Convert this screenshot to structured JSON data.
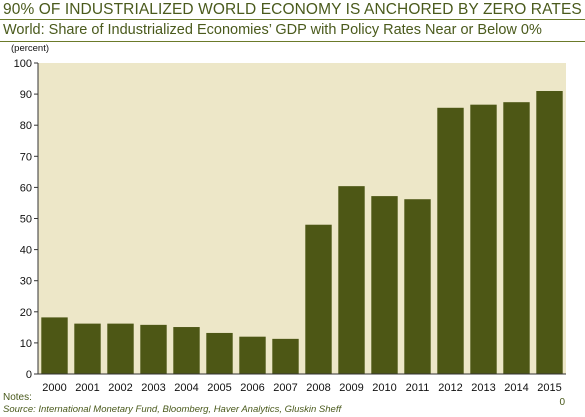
{
  "header": {
    "headline": "90% OF INDUSTRIALIZED WORLD ECONOMY IS ANCHORED BY ZERO RATES",
    "subtitle": "World: Share of Industrialized Economies’ GDP with Policy Rates Near or Below 0%"
  },
  "footer": {
    "notes_label": "Notes:",
    "source": "Source: International Monetary Fund, Bloomberg, Haver Analytics, Gluskin Sheff",
    "page_number": "0"
  },
  "colors": {
    "bar": "#4d5715",
    "plot_background": "#ede7c8",
    "text_accent": "#4a5a1c"
  },
  "chart_data": {
    "type": "bar",
    "title": "World: Share of Industrialized Economies’ GDP with Policy Rates Near or Below 0%",
    "unit": "(percent)",
    "categories": [
      "2000",
      "2001",
      "2002",
      "2003",
      "2004",
      "2005",
      "2006",
      "2007",
      "2008",
      "2009",
      "2010",
      "2011",
      "2012",
      "2013",
      "2014",
      "2015"
    ],
    "values": [
      18.2,
      16.2,
      16.2,
      15.8,
      15.1,
      13.2,
      12.0,
      11.3,
      48.0,
      60.4,
      57.2,
      56.2,
      85.6,
      86.6,
      87.4,
      91.0
    ],
    "ylim": [
      0,
      100
    ],
    "yticks": [
      0,
      10,
      20,
      30,
      40,
      50,
      60,
      70,
      80,
      90,
      100
    ],
    "grid": false,
    "legend": "none"
  }
}
